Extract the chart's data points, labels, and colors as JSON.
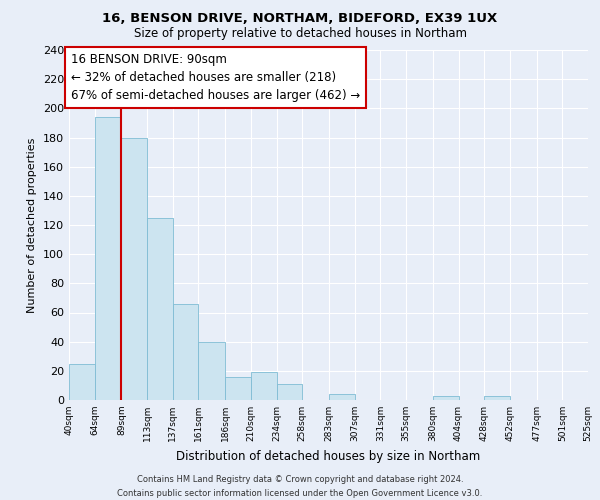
{
  "title1": "16, BENSON DRIVE, NORTHAM, BIDEFORD, EX39 1UX",
  "title2": "Size of property relative to detached houses in Northam",
  "xlabel": "Distribution of detached houses by size in Northam",
  "ylabel": "Number of detached properties",
  "bin_edges": [
    40,
    64,
    89,
    113,
    137,
    161,
    186,
    210,
    234,
    258,
    283,
    307,
    331,
    355,
    380,
    404,
    428,
    452,
    477,
    501,
    525
  ],
  "counts": [
    25,
    194,
    180,
    125,
    66,
    40,
    16,
    19,
    11,
    0,
    4,
    0,
    0,
    0,
    3,
    0,
    3,
    0,
    0,
    0
  ],
  "bar_color": "#cce4f0",
  "bar_edge_color": "#7fbcd4",
  "marker_value": 89,
  "marker_color": "#cc0000",
  "annotation_title": "16 BENSON DRIVE: 90sqm",
  "annotation_line1": "← 32% of detached houses are smaller (218)",
  "annotation_line2": "67% of semi-detached houses are larger (462) →",
  "annotation_box_color": "#ffffff",
  "annotation_box_edge": "#cc0000",
  "tick_labels": [
    "40sqm",
    "64sqm",
    "89sqm",
    "113sqm",
    "137sqm",
    "161sqm",
    "186sqm",
    "210sqm",
    "234sqm",
    "258sqm",
    "283sqm",
    "307sqm",
    "331sqm",
    "355sqm",
    "380sqm",
    "404sqm",
    "428sqm",
    "452sqm",
    "477sqm",
    "501sqm",
    "525sqm"
  ],
  "ylim": [
    0,
    240
  ],
  "yticks": [
    0,
    20,
    40,
    60,
    80,
    100,
    120,
    140,
    160,
    180,
    200,
    220,
    240
  ],
  "footer1": "Contains HM Land Registry data © Crown copyright and database right 2024.",
  "footer2": "Contains public sector information licensed under the Open Government Licence v3.0.",
  "bg_color": "#e8eef8",
  "grid_color": "#ffffff"
}
